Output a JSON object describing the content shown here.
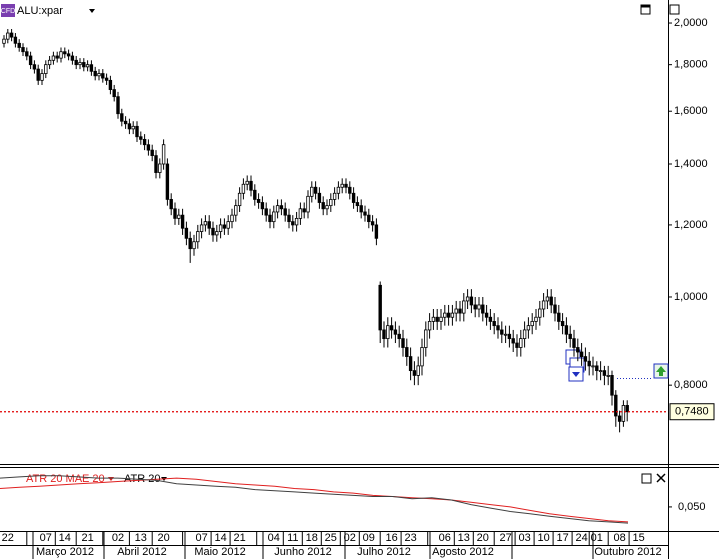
{
  "chart_data": [
    {
      "type": "candlestick",
      "title": "ALU:xpar",
      "log_scale": true,
      "categories": [
        null,
        "22",
        null,
        null,
        null,
        null,
        null,
        null,
        null,
        null,
        null,
        "07",
        null,
        null,
        null,
        null,
        "14",
        null,
        null,
        null,
        null,
        null,
        "21",
        null,
        null,
        null,
        null,
        null,
        null,
        null,
        "02",
        null,
        null,
        null,
        null,
        null,
        "13",
        null,
        null,
        null,
        null,
        null,
        "20",
        null,
        null,
        null,
        null,
        null,
        null,
        null,
        null,
        null,
        "07",
        null,
        null,
        null,
        null,
        "14",
        null,
        null,
        null,
        null,
        "21",
        null,
        null,
        null,
        null,
        null,
        null,
        null,
        null,
        "04",
        null,
        null,
        null,
        null,
        "11",
        null,
        null,
        null,
        null,
        "18",
        null,
        null,
        null,
        null,
        "25",
        null,
        null,
        null,
        null,
        "02",
        null,
        null,
        null,
        null,
        "09",
        null,
        null,
        null,
        null,
        null,
        "16",
        null,
        null,
        null,
        null,
        "23",
        null,
        null,
        null,
        null,
        null,
        null,
        null,
        null,
        "06",
        null,
        null,
        null,
        null,
        "13",
        null,
        null,
        null,
        null,
        "20",
        null,
        null,
        null,
        null,
        null,
        "27",
        null,
        null,
        null,
        null,
        "03",
        null,
        null,
        null,
        null,
        "10",
        null,
        null,
        null,
        null,
        "17",
        null,
        null,
        null,
        null,
        "24",
        null,
        null,
        null,
        "01",
        null,
        null,
        null,
        null,
        null,
        "08",
        null,
        null,
        null,
        null,
        "15"
      ],
      "open": [
        1.9,
        1.92,
        1.95,
        1.93,
        1.9,
        1.88,
        1.86,
        1.84,
        1.8,
        1.78,
        1.73,
        1.76,
        1.8,
        1.82,
        1.84,
        1.83,
        1.86,
        1.85,
        1.84,
        1.82,
        1.8,
        1.81,
        1.79,
        1.8,
        1.77,
        1.75,
        1.76,
        1.74,
        1.73,
        1.69,
        1.66,
        1.59,
        1.56,
        1.55,
        1.53,
        1.54,
        1.5,
        1.49,
        1.47,
        1.45,
        1.43,
        1.37,
        1.4,
        1.4,
        1.28,
        1.25,
        1.22,
        1.23,
        1.19,
        1.16,
        1.13,
        1.15,
        1.18,
        1.2,
        1.21,
        1.19,
        1.17,
        1.18,
        1.2,
        1.19,
        1.21,
        1.23,
        1.26,
        1.3,
        1.33,
        1.34,
        1.31,
        1.28,
        1.27,
        1.25,
        1.23,
        1.21,
        1.24,
        1.26,
        1.25,
        1.23,
        1.21,
        1.2,
        1.22,
        1.25,
        1.24,
        1.29,
        1.32,
        1.3,
        1.27,
        1.25,
        1.26,
        1.28,
        1.3,
        1.32,
        1.33,
        1.32,
        1.3,
        1.27,
        1.26,
        1.24,
        1.23,
        1.21,
        1.2,
        1.03,
        0.92,
        0.9,
        0.93,
        0.92,
        0.91,
        0.9,
        0.88,
        0.86,
        0.83,
        0.82,
        0.84,
        0.88,
        0.92,
        0.94,
        0.95,
        0.94,
        0.95,
        0.96,
        0.95,
        0.96,
        0.97,
        0.96,
        0.99,
        1.0,
        0.98,
        0.97,
        0.98,
        0.96,
        0.95,
        0.94,
        0.93,
        0.92,
        0.91,
        0.91,
        0.9,
        0.89,
        0.88,
        0.9,
        0.92,
        0.93,
        0.94,
        0.95,
        0.97,
        0.99,
        1.0,
        0.98,
        0.96,
        0.94,
        0.93,
        0.91,
        0.9,
        0.88,
        0.87,
        0.86,
        0.85,
        0.84,
        0.84,
        0.83,
        0.83,
        0.82,
        0.82,
        0.78,
        0.74,
        0.73,
        0.76,
        null,
        null,
        null
      ],
      "high": [
        1.94,
        1.97,
        1.97,
        1.95,
        1.92,
        1.9,
        1.88,
        1.86,
        1.82,
        1.8,
        1.78,
        1.82,
        1.84,
        1.86,
        1.86,
        1.88,
        1.88,
        1.87,
        1.86,
        1.84,
        1.83,
        1.83,
        1.82,
        1.82,
        1.79,
        1.78,
        1.78,
        1.76,
        1.75,
        1.71,
        1.68,
        1.61,
        1.58,
        1.57,
        1.56,
        1.56,
        1.52,
        1.51,
        1.49,
        1.47,
        1.45,
        1.42,
        1.49,
        1.42,
        1.3,
        1.27,
        1.25,
        1.25,
        1.21,
        1.18,
        1.17,
        1.2,
        1.22,
        1.23,
        1.23,
        1.21,
        1.2,
        1.22,
        1.22,
        1.23,
        1.25,
        1.28,
        1.32,
        1.35,
        1.36,
        1.36,
        1.33,
        1.3,
        1.29,
        1.27,
        1.25,
        1.26,
        1.28,
        1.28,
        1.27,
        1.25,
        1.23,
        1.24,
        1.27,
        1.27,
        1.31,
        1.34,
        1.34,
        1.32,
        1.29,
        1.28,
        1.3,
        1.32,
        1.34,
        1.35,
        1.35,
        1.34,
        1.32,
        1.29,
        1.28,
        1.26,
        1.25,
        1.23,
        1.22,
        1.04,
        0.94,
        0.95,
        0.95,
        0.94,
        0.93,
        0.92,
        0.9,
        0.88,
        0.85,
        0.86,
        0.9,
        0.94,
        0.96,
        0.97,
        0.97,
        0.97,
        0.98,
        0.98,
        0.98,
        0.99,
        0.99,
        1.01,
        1.02,
        1.02,
        1.0,
        1.0,
        1.0,
        0.98,
        0.97,
        0.96,
        0.95,
        0.94,
        0.93,
        0.93,
        0.92,
        0.91,
        0.92,
        0.94,
        0.95,
        0.96,
        0.97,
        0.99,
        1.01,
        1.02,
        1.02,
        1.0,
        0.98,
        0.96,
        0.95,
        0.93,
        0.92,
        0.9,
        0.89,
        0.88,
        0.87,
        0.86,
        0.85,
        0.85,
        0.84,
        0.84,
        0.83,
        0.79,
        0.75,
        0.77,
        0.77,
        null,
        null,
        null
      ],
      "low": [
        1.88,
        1.9,
        1.91,
        1.88,
        1.86,
        1.84,
        1.82,
        1.78,
        1.76,
        1.71,
        1.71,
        1.74,
        1.78,
        1.8,
        1.81,
        1.81,
        1.83,
        1.82,
        1.8,
        1.78,
        1.78,
        1.77,
        1.77,
        1.75,
        1.73,
        1.73,
        1.72,
        1.71,
        1.67,
        1.64,
        1.57,
        1.54,
        1.53,
        1.51,
        1.51,
        1.48,
        1.47,
        1.45,
        1.43,
        1.41,
        1.35,
        1.35,
        1.38,
        1.26,
        1.23,
        1.2,
        1.2,
        1.17,
        1.14,
        1.09,
        1.11,
        1.13,
        1.16,
        1.18,
        1.17,
        1.15,
        1.15,
        1.16,
        1.17,
        1.17,
        1.19,
        1.21,
        1.24,
        1.28,
        1.31,
        1.29,
        1.26,
        1.25,
        1.23,
        1.21,
        1.19,
        1.19,
        1.22,
        1.23,
        1.21,
        1.19,
        1.18,
        1.18,
        1.2,
        1.22,
        1.22,
        1.27,
        1.28,
        1.25,
        1.23,
        1.23,
        1.24,
        1.26,
        1.28,
        1.3,
        1.3,
        1.28,
        1.25,
        1.24,
        1.22,
        1.21,
        1.19,
        1.18,
        1.14,
        0.89,
        0.88,
        0.88,
        0.9,
        0.89,
        0.88,
        0.86,
        0.84,
        0.81,
        0.8,
        0.8,
        0.82,
        0.86,
        0.9,
        0.92,
        0.92,
        0.92,
        0.93,
        0.93,
        0.93,
        0.94,
        0.94,
        0.94,
        0.97,
        0.96,
        0.95,
        0.95,
        0.94,
        0.93,
        0.92,
        0.91,
        0.9,
        0.89,
        0.89,
        0.88,
        0.87,
        0.86,
        0.86,
        0.88,
        0.9,
        0.91,
        0.92,
        0.93,
        0.95,
        0.97,
        0.96,
        0.94,
        0.92,
        0.91,
        0.89,
        0.88,
        0.86,
        0.85,
        0.84,
        0.83,
        0.82,
        0.82,
        0.81,
        0.81,
        0.8,
        0.8,
        0.76,
        0.72,
        0.71,
        0.72,
        0.73,
        null,
        null,
        null
      ],
      "close": [
        1.92,
        1.95,
        1.93,
        1.9,
        1.88,
        1.86,
        1.84,
        1.8,
        1.78,
        1.73,
        1.76,
        1.8,
        1.82,
        1.84,
        1.83,
        1.86,
        1.85,
        1.84,
        1.82,
        1.8,
        1.81,
        1.79,
        1.8,
        1.77,
        1.75,
        1.76,
        1.74,
        1.73,
        1.69,
        1.66,
        1.59,
        1.56,
        1.55,
        1.53,
        1.54,
        1.5,
        1.49,
        1.47,
        1.45,
        1.43,
        1.37,
        1.4,
        1.47,
        1.28,
        1.25,
        1.22,
        1.23,
        1.19,
        1.16,
        1.13,
        1.15,
        1.18,
        1.2,
        1.21,
        1.19,
        1.17,
        1.18,
        1.2,
        1.19,
        1.21,
        1.23,
        1.26,
        1.3,
        1.33,
        1.34,
        1.31,
        1.28,
        1.27,
        1.25,
        1.23,
        1.21,
        1.24,
        1.26,
        1.25,
        1.23,
        1.21,
        1.2,
        1.22,
        1.25,
        1.24,
        1.29,
        1.32,
        1.3,
        1.27,
        1.25,
        1.26,
        1.28,
        1.3,
        1.32,
        1.33,
        1.32,
        1.3,
        1.27,
        1.26,
        1.24,
        1.23,
        1.21,
        1.2,
        1.16,
        0.92,
        0.9,
        0.93,
        0.92,
        0.91,
        0.9,
        0.88,
        0.86,
        0.83,
        0.82,
        0.84,
        0.88,
        0.92,
        0.94,
        0.95,
        0.94,
        0.95,
        0.96,
        0.95,
        0.96,
        0.97,
        0.96,
        0.99,
        1.0,
        0.98,
        0.97,
        0.98,
        0.96,
        0.95,
        0.94,
        0.93,
        0.92,
        0.91,
        0.91,
        0.9,
        0.89,
        0.88,
        0.9,
        0.92,
        0.93,
        0.94,
        0.95,
        0.97,
        0.99,
        1.0,
        0.98,
        0.96,
        0.94,
        0.93,
        0.91,
        0.9,
        0.88,
        0.87,
        0.86,
        0.85,
        0.84,
        0.84,
        0.83,
        0.83,
        0.82,
        0.82,
        0.78,
        0.74,
        0.73,
        0.76,
        0.748,
        null,
        null,
        null
      ],
      "color": "#000000",
      "ylim": [
        0.662,
        2.12
      ],
      "yticks": [
        {
          "value": 2.0,
          "label": "2,0000"
        },
        {
          "value": 1.8,
          "label": "1,8000"
        },
        {
          "value": 1.6,
          "label": "1,6000"
        },
        {
          "value": 1.4,
          "label": "1,4000"
        },
        {
          "value": 1.2,
          "label": "1,2000"
        },
        {
          "value": 1.0,
          "label": "1,0000"
        },
        {
          "value": 0.8,
          "label": "0,8000"
        }
      ],
      "last_price": {
        "value": 0.748,
        "label": "0,7480"
      },
      "last_price_color": "#e00000",
      "months": [
        "Março 2012",
        "Abril 2012",
        "Maio 2012",
        "Junho 2012",
        "Julho 2012",
        "Agosto 2012",
        "Outubro 2012"
      ]
    },
    {
      "type": "line",
      "categories": [
        null,
        null,
        null,
        null,
        null,
        null,
        null,
        null,
        null,
        null,
        null,
        null,
        null,
        null,
        null,
        null,
        null,
        null,
        null,
        null,
        null,
        null,
        null,
        null,
        null,
        null,
        null,
        null,
        null,
        null,
        null,
        null,
        null
      ],
      "series": [
        {
          "name": "ATR 20 MAE 20",
          "color": "#e02020",
          "values": [
            0.066,
            0.067,
            0.068,
            0.069,
            0.07,
            0.071,
            0.072,
            0.073,
            0.074,
            0.075,
            0.074,
            0.072,
            0.07,
            0.069,
            0.068,
            0.066,
            0.065,
            0.063,
            0.062,
            0.06,
            0.059,
            0.058,
            0.057,
            0.056,
            0.054,
            0.052,
            0.05,
            0.047,
            0.044,
            0.042,
            0.04,
            0.038,
            0.037
          ]
        },
        {
          "name": "ATR 20",
          "color": "#404040",
          "values": [
            0.075,
            0.076,
            0.077,
            0.077,
            0.076,
            0.075,
            0.075,
            0.074,
            0.073,
            0.07,
            0.069,
            0.068,
            0.067,
            0.065,
            0.064,
            0.063,
            0.062,
            0.061,
            0.06,
            0.059,
            0.059,
            0.057,
            0.058,
            0.056,
            0.052,
            0.049,
            0.046,
            0.044,
            0.042,
            0.04,
            0.038,
            0.037,
            0.036
          ]
        }
      ],
      "ylim": [
        0.03,
        0.082
      ],
      "yticks": [
        {
          "value": 0.05,
          "label": "0,050"
        }
      ]
    }
  ]
}
